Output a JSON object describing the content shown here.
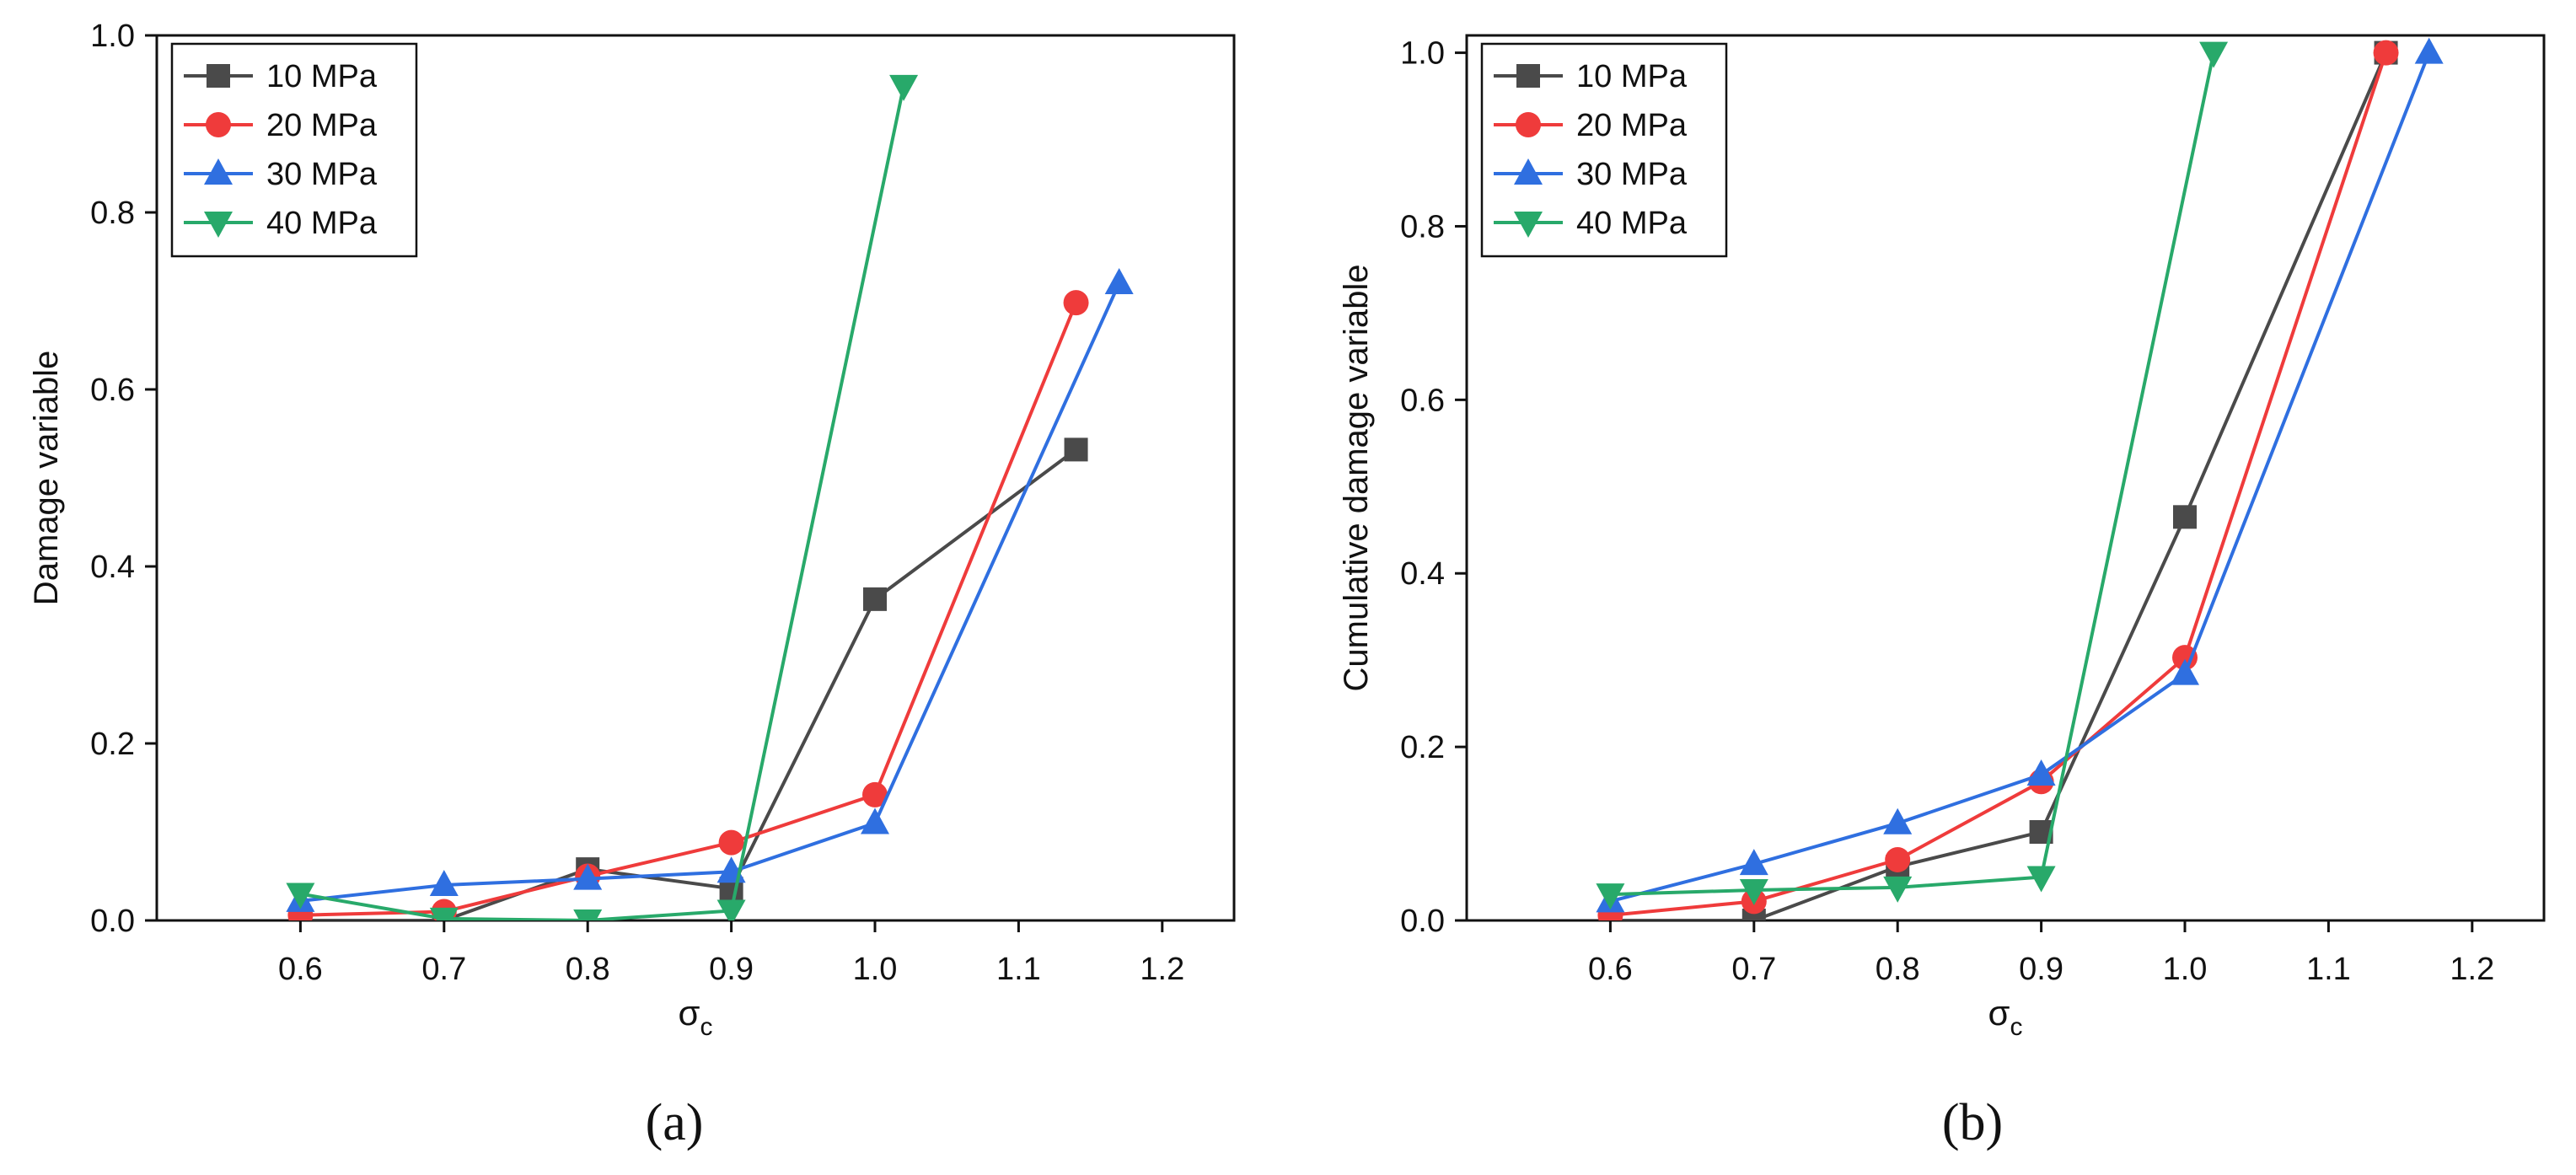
{
  "series_styles": {
    "10 MPa": {
      "color": "#4a4a4a",
      "marker": "square"
    },
    "20 MPa": {
      "color": "#ef3b3b",
      "marker": "circle"
    },
    "30 MPa": {
      "color": "#2f6fe0",
      "marker": "triangle-up"
    },
    "40 MPa": {
      "color": "#28a96a",
      "marker": "triangle-down"
    }
  },
  "chart_data": [
    {
      "type": "line",
      "panel_label": "(a)",
      "title": "",
      "xlabel": "σc",
      "xlabel_main": "σ",
      "xlabel_sub": "c",
      "ylabel": "Damage variable",
      "xlim": [
        0.5,
        1.25
      ],
      "ylim": [
        0,
        1.0
      ],
      "xticks": [
        "0.6",
        "0.7",
        "0.8",
        "0.9",
        "1.0",
        "1.1",
        "1.2"
      ],
      "yticks": [
        "0.0",
        "0.2",
        "0.4",
        "0.6",
        "0.8",
        "1.0"
      ],
      "legend": [
        "10 MPa",
        "20 MPa",
        "30 MPa",
        "40 MPa"
      ],
      "legend_position": "top-left",
      "series": [
        {
          "name": "10 MPa",
          "x": [
            0.6,
            0.7,
            0.8,
            0.9,
            1.0,
            1.14
          ],
          "y": [
            0.0,
            0.0,
            0.058,
            0.036,
            0.363,
            0.532
          ]
        },
        {
          "name": "20 MPa",
          "x": [
            0.6,
            0.7,
            0.8,
            0.9,
            1.0,
            1.14
          ],
          "y": [
            0.006,
            0.01,
            0.05,
            0.088,
            0.142,
            0.698
          ]
        },
        {
          "name": "30 MPa",
          "x": [
            0.6,
            0.7,
            0.8,
            0.9,
            1.0,
            1.17
          ],
          "y": [
            0.022,
            0.04,
            0.047,
            0.055,
            0.11,
            0.72
          ]
        },
        {
          "name": "40 MPa",
          "x": [
            0.6,
            0.7,
            0.8,
            0.9,
            1.02
          ],
          "y": [
            0.03,
            0.002,
            0.0,
            0.011,
            0.943
          ]
        }
      ]
    },
    {
      "type": "line",
      "panel_label": "(b)",
      "title": "",
      "xlabel": "σc",
      "xlabel_main": "σ",
      "xlabel_sub": "c",
      "ylabel": "Cumulative damage variable",
      "xlim": [
        0.5,
        1.25
      ],
      "ylim": [
        0,
        1.02
      ],
      "xticks": [
        "0.6",
        "0.7",
        "0.8",
        "0.9",
        "1.0",
        "1.1",
        "1.2"
      ],
      "yticks": [
        "0.0",
        "0.2",
        "0.4",
        "0.6",
        "0.8",
        "1.0"
      ],
      "legend": [
        "10 MPa",
        "20 MPa",
        "30 MPa",
        "40 MPa"
      ],
      "legend_position": "top-left",
      "series": [
        {
          "name": "10 MPa",
          "x": [
            0.6,
            0.7,
            0.8,
            0.9,
            1.0,
            1.14
          ],
          "y": [
            0.0,
            0.0,
            0.062,
            0.102,
            0.465,
            1.0
          ]
        },
        {
          "name": "20 MPa",
          "x": [
            0.6,
            0.7,
            0.8,
            0.9,
            1.0,
            1.14
          ],
          "y": [
            0.006,
            0.022,
            0.07,
            0.16,
            0.303,
            1.0
          ]
        },
        {
          "name": "30 MPa",
          "x": [
            0.6,
            0.7,
            0.8,
            0.9,
            1.0,
            1.17
          ],
          "y": [
            0.022,
            0.065,
            0.112,
            0.168,
            0.284,
            1.0
          ]
        },
        {
          "name": "40 MPa",
          "x": [
            0.6,
            0.7,
            0.8,
            0.9,
            1.02
          ],
          "y": [
            0.03,
            0.035,
            0.038,
            0.05,
            1.0
          ]
        }
      ]
    }
  ]
}
